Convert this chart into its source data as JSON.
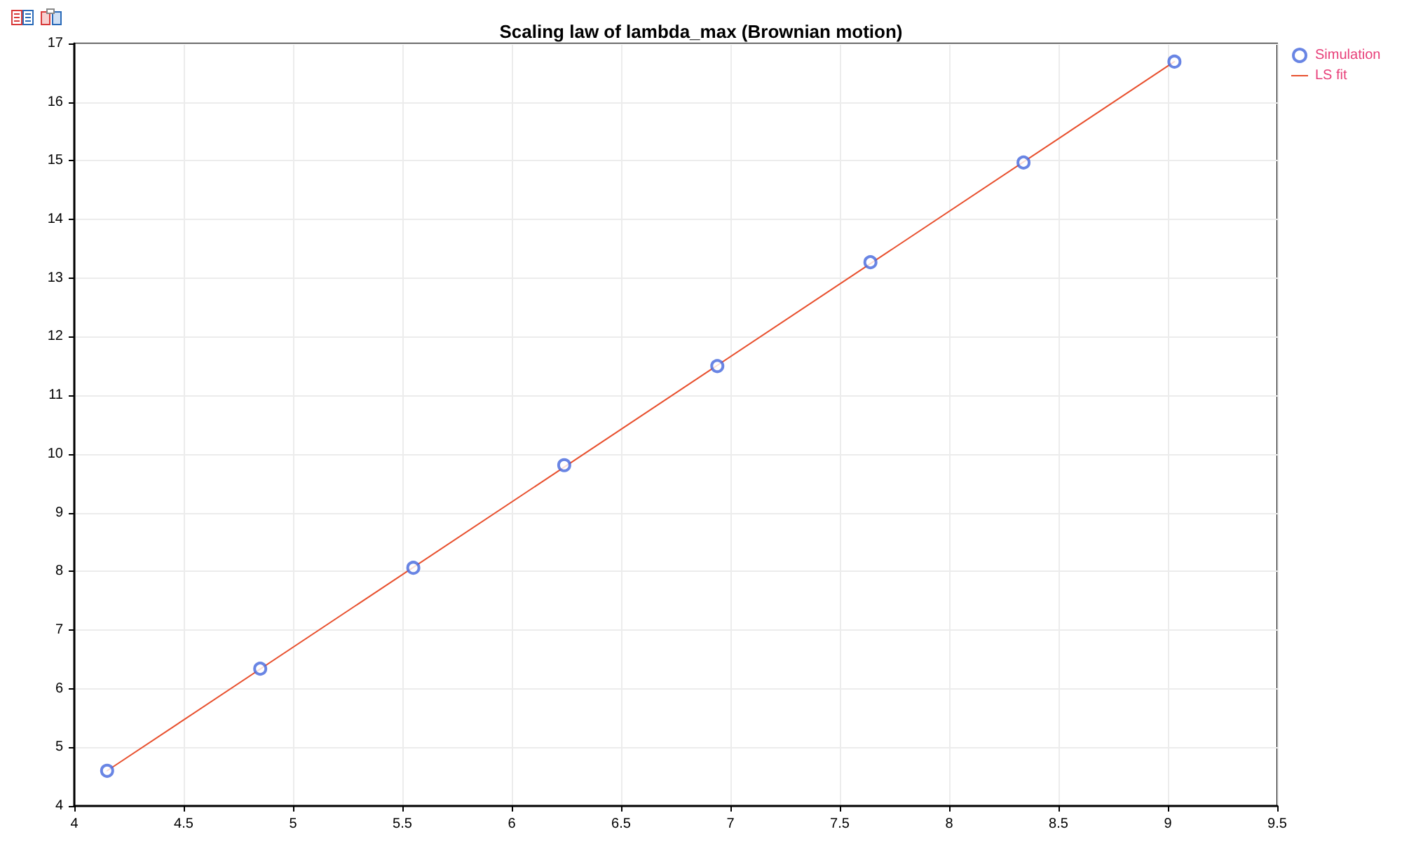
{
  "chart_data": {
    "type": "scatter",
    "title": "Scaling law of lambda_max (Brownian motion)",
    "xlim": [
      4,
      9.5
    ],
    "xticks": [
      4,
      4.5,
      5,
      5.5,
      6,
      6.5,
      7,
      7.5,
      8,
      8.5,
      9,
      9.5
    ],
    "ylim": [
      4,
      17
    ],
    "yticks": [
      4,
      5,
      6,
      7,
      8,
      9,
      10,
      11,
      12,
      13,
      14,
      15,
      16,
      17
    ],
    "grid": true,
    "legend": "top right",
    "marker": "circle",
    "series": [
      {
        "name": "Simulation",
        "color": "#4466dd",
        "x": [
          4.15,
          4.85,
          5.55,
          6.24,
          6.94,
          7.64,
          8.34,
          9.03
        ],
        "values": [
          4.6,
          6.34,
          8.06,
          9.81,
          11.5,
          13.27,
          14.97,
          16.69
        ]
      },
      {
        "name": "LS fit",
        "type": "line",
        "marker": "none",
        "color": "#e8502e",
        "x": [
          4.15,
          9.03
        ],
        "values": [
          4.6,
          16.69
        ]
      }
    ]
  }
}
